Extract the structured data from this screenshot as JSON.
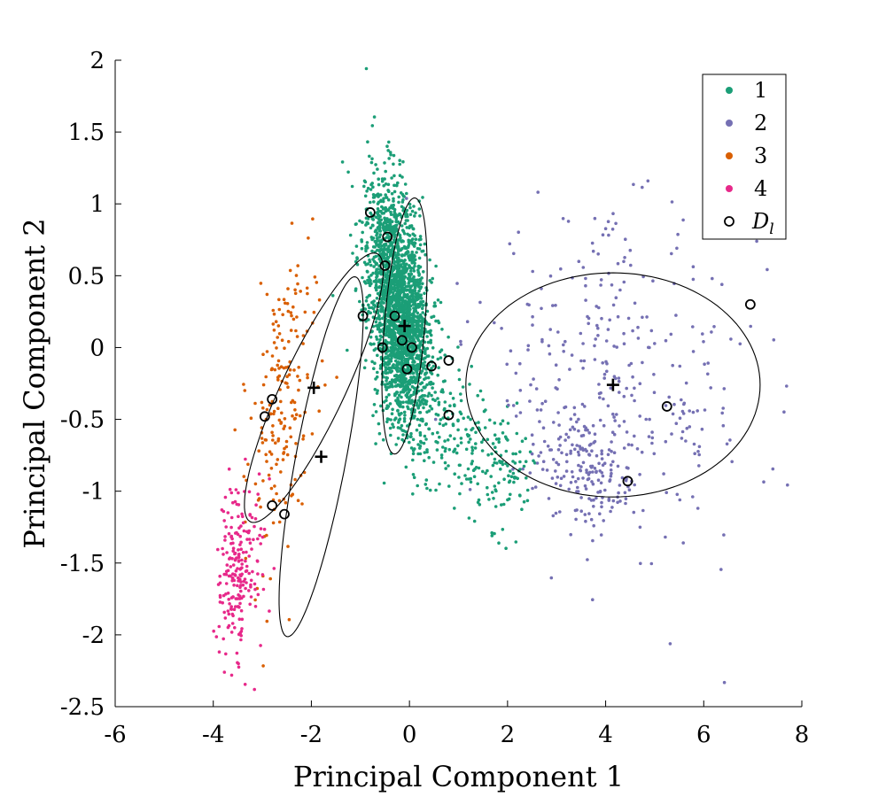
{
  "chart_data": {
    "type": "scatter",
    "title": "",
    "xlabel": "Principal Component 1",
    "ylabel": "Principal Component 2",
    "xlim": [
      -6,
      8
    ],
    "ylim": [
      -2.5,
      2
    ],
    "xticks": [
      "-6",
      "-4",
      "-2",
      "0",
      "2",
      "4",
      "6",
      "8"
    ],
    "yticks": [
      "-2.5",
      "-2",
      "-1.5",
      "-1",
      "-0.5",
      "0",
      "0.5",
      "1",
      "1.5",
      "2"
    ],
    "grid": false,
    "legend_position": "top-right",
    "series": [
      {
        "name": "1",
        "color": "#1b9e77",
        "approx_count": 2600,
        "distribution": {
          "center": [
            -0.2,
            0.25
          ],
          "spread_major": 0.45,
          "spread_minor": 0.28,
          "angle_deg": -64
        },
        "outlier_tail": {
          "from": [
            0.5,
            -0.4
          ],
          "to": [
            2.2,
            -1.0
          ],
          "count": 220
        }
      },
      {
        "name": "2",
        "color": "#7570b3",
        "approx_count": 480,
        "distribution": {
          "center": [
            4.2,
            -0.25
          ],
          "spread_major": 1.45,
          "spread_minor": 0.55,
          "angle_deg": -5
        },
        "dense_cluster": {
          "center": [
            3.6,
            -0.85
          ],
          "spread": [
            0.55,
            0.18
          ],
          "count": 160
        }
      },
      {
        "name": "3",
        "color": "#d95f02",
        "approx_count": 200,
        "distribution": {
          "center": [
            -2.6,
            -0.4
          ],
          "spread_major": 0.55,
          "spread_minor": 0.28,
          "angle_deg": 70
        }
      },
      {
        "name": "4",
        "color": "#e7298a",
        "approx_count": 220,
        "distribution": {
          "center": [
            -3.5,
            -1.55
          ],
          "spread_major": 0.3,
          "spread_minor": 0.22,
          "angle_deg": 75
        }
      }
    ],
    "labeled_points": {
      "name": "D_l",
      "label_main": "D",
      "label_sub": "l",
      "points": [
        [
          -0.8,
          0.94
        ],
        [
          -0.45,
          0.77
        ],
        [
          -0.5,
          0.57
        ],
        [
          -0.95,
          0.22
        ],
        [
          -0.3,
          0.22
        ],
        [
          -0.15,
          0.05
        ],
        [
          0.05,
          0.0
        ],
        [
          -0.55,
          0.0
        ],
        [
          -0.05,
          -0.15
        ],
        [
          0.45,
          -0.13
        ],
        [
          0.8,
          -0.09
        ],
        [
          0.8,
          -0.47
        ],
        [
          -2.8,
          -0.36
        ],
        [
          -2.95,
          -0.48
        ],
        [
          -2.8,
          -1.1
        ],
        [
          -2.55,
          -1.16
        ],
        [
          6.95,
          0.3
        ],
        [
          5.25,
          -0.41
        ],
        [
          4.45,
          -0.93
        ]
      ]
    },
    "ellipses": [
      {
        "center": [
          -0.1,
          0.15
        ],
        "semi_major": 0.92,
        "semi_minor": 0.4,
        "angle_deg": 74
      },
      {
        "center": [
          4.15,
          -0.26
        ],
        "semi_major": 3.0,
        "semi_minor": 0.78,
        "angle_deg": 0
      },
      {
        "center": [
          -1.95,
          -0.28
        ],
        "semi_major": 1.65,
        "semi_minor": 0.4,
        "angle_deg": 32
      },
      {
        "center": [
          -1.8,
          -0.76
        ],
        "semi_major": 1.45,
        "semi_minor": 0.45,
        "angle_deg": 58
      }
    ],
    "centroids": [
      [
        -0.1,
        0.15
      ],
      [
        4.15,
        -0.26
      ],
      [
        -1.95,
        -0.28
      ],
      [
        -1.8,
        -0.76
      ]
    ]
  }
}
